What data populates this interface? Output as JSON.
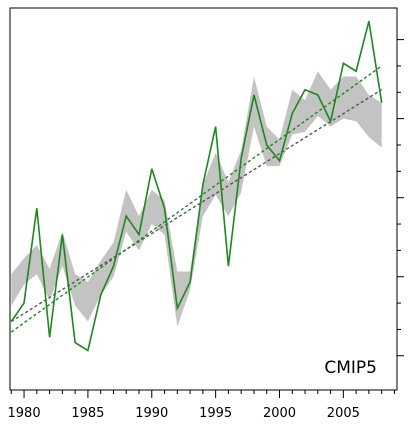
{
  "chart_data": {
    "type": "line",
    "title": "",
    "xlabel": "",
    "ylabel": "",
    "annotation": "CMIP5",
    "xlim": [
      1978.9,
      2009.2
    ],
    "ylim": [
      -1.3,
      13.2
    ],
    "x_ticks": [
      1980,
      1985,
      1990,
      1995,
      2000,
      2005
    ],
    "x_tick_labels": [
      "1980",
      "1985",
      "1990",
      "1995",
      "2000",
      "2005"
    ],
    "y_ticks": [
      0,
      3,
      6,
      9,
      12
    ],
    "grid": false,
    "legend": "none",
    "colors": {
      "observed": "#1a8a1a",
      "observed_trend": "#1a8a1a",
      "model_band": "#c3c3c3",
      "model_trend": "#555555",
      "frame": "#000000"
    },
    "series": [
      {
        "role": "observed",
        "style": "solid",
        "x": [
          1979,
          1980,
          1981,
          1982,
          1983,
          1984,
          1985,
          1986,
          1987,
          1988,
          1989,
          1990,
          1991,
          1992,
          1993,
          1994,
          1995,
          1996,
          1997,
          1998,
          1999,
          2000,
          2001,
          2002,
          2003,
          2004,
          2005,
          2006,
          2007,
          2008
        ],
        "y": [
          1.3,
          2.0,
          5.6,
          0.7,
          4.6,
          0.5,
          0.2,
          2.3,
          3.4,
          5.3,
          4.6,
          7.1,
          5.6,
          1.8,
          2.8,
          6.5,
          8.7,
          3.4,
          7.5,
          9.9,
          8.0,
          7.4,
          9.2,
          10.1,
          9.9,
          8.9,
          11.1,
          10.8,
          12.7,
          9.6
        ]
      },
      {
        "role": "model_band",
        "style": "fill",
        "x": [
          1979,
          1980,
          1981,
          1982,
          1983,
          1984,
          1985,
          1986,
          1987,
          1988,
          1989,
          1990,
          1991,
          1992,
          1993,
          1994,
          1995,
          1996,
          1997,
          1998,
          1999,
          2000,
          2001,
          2002,
          2003,
          2004,
          2005,
          2006,
          2007,
          2008
        ],
        "upper": [
          3.1,
          3.7,
          4.2,
          3.3,
          4.7,
          3.1,
          2.8,
          3.6,
          4.3,
          6.3,
          5.3,
          6.3,
          5.9,
          3.2,
          3.2,
          6.5,
          7.7,
          6.6,
          7.8,
          10.6,
          8.7,
          8.2,
          10.1,
          9.7,
          10.8,
          10.1,
          10.6,
          10.6,
          9.9,
          9.6
        ],
        "lower": [
          1.9,
          2.7,
          3.1,
          2.1,
          3.4,
          1.9,
          1.3,
          2.3,
          3.0,
          4.7,
          4.0,
          5.0,
          4.6,
          1.1,
          2.5,
          5.3,
          6.1,
          5.3,
          6.2,
          8.7,
          7.2,
          7.2,
          8.4,
          8.5,
          9.1,
          8.7,
          9.0,
          8.9,
          8.3,
          7.9
        ]
      },
      {
        "role": "observed_trend",
        "style": "dotted",
        "x": [
          1979,
          2008
        ],
        "y": [
          0.9,
          11.0
        ]
      },
      {
        "role": "model_trend",
        "style": "dotted",
        "x": [
          1979,
          2008
        ],
        "y": [
          1.3,
          10.1
        ]
      }
    ]
  }
}
